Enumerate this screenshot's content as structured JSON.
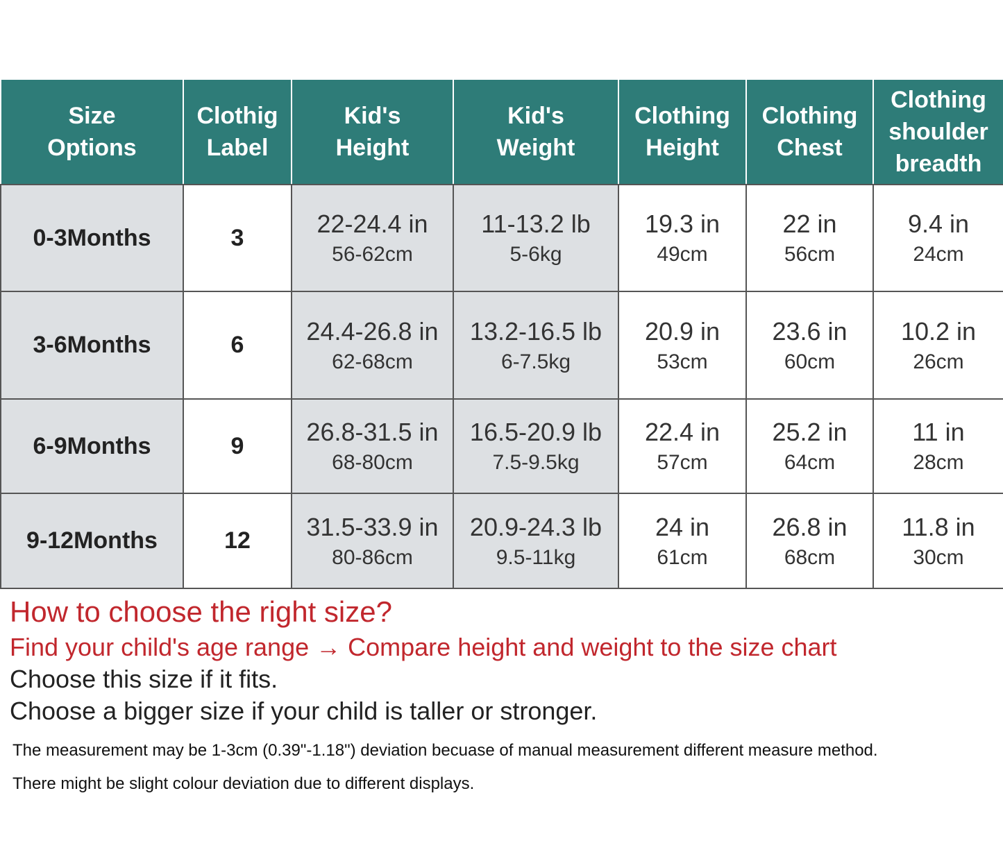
{
  "table": {
    "header": [
      [
        "Size",
        "Options"
      ],
      [
        "Clothig",
        "Label"
      ],
      [
        "Kid's",
        "Height"
      ],
      [
        "Kid's",
        "Weight"
      ],
      [
        "Clothing",
        "Height"
      ],
      [
        "Clothing",
        "Chest"
      ],
      [
        "Clothing",
        "shoulder",
        "breadth"
      ]
    ],
    "rows": [
      {
        "size": "0-3Months",
        "label": "3",
        "cells": [
          [
            "22-24.4 in",
            "56-62cm"
          ],
          [
            "11-13.2 lb",
            "5-6kg"
          ],
          [
            "19.3 in",
            "49cm"
          ],
          [
            "22 in",
            "56cm"
          ],
          [
            "9.4 in",
            "24cm"
          ]
        ]
      },
      {
        "size": "3-6Months",
        "label": "6",
        "cells": [
          [
            "24.4-26.8 in",
            "62-68cm"
          ],
          [
            "13.2-16.5 lb",
            "6-7.5kg"
          ],
          [
            "20.9 in",
            "53cm"
          ],
          [
            "23.6 in",
            "60cm"
          ],
          [
            "10.2 in",
            "26cm"
          ]
        ]
      },
      {
        "size": "6-9Months",
        "label": "9",
        "cells": [
          [
            "26.8-31.5 in",
            "68-80cm"
          ],
          [
            "16.5-20.9 lb",
            "7.5-9.5kg"
          ],
          [
            "22.4 in",
            "57cm"
          ],
          [
            "25.2 in",
            "64cm"
          ],
          [
            "11 in",
            "28cm"
          ]
        ]
      },
      {
        "size": "9-12Months",
        "label": "12",
        "cells": [
          [
            "31.5-33.9 in",
            "80-86cm"
          ],
          [
            "20.9-24.3 lb",
            "9.5-11kg"
          ],
          [
            "24 in",
            "61cm"
          ],
          [
            "26.8 in",
            "68cm"
          ],
          [
            "11.8 in",
            "30cm"
          ]
        ]
      }
    ]
  },
  "guide": {
    "title": "How to choose the right size?",
    "steps": "Find your child's age range → Compare height and weight to the size chart",
    "lines": [
      "Choose this size if it fits.",
      "Choose a bigger size if your child is taller or stronger."
    ],
    "notes": [
      "The measurement may be 1-3cm (0.39\"-1.18\") deviation becuase of manual measurement different measure method.",
      "There might be slight colour deviation due to different displays."
    ]
  }
}
